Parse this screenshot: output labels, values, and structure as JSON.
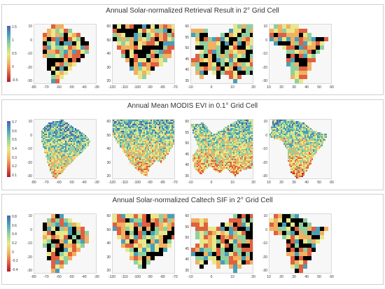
{
  "panels": [
    {
      "title": "Annual Solar-normalized Retrieval Result in 2° Grid Cell",
      "style": "coarse",
      "colorbar_ticks": [
        "1.5",
        "1",
        "0.5",
        "0",
        "-0.5"
      ],
      "maps": [
        {
          "region": "south-america",
          "yticks": [
            "10",
            "0",
            "-10",
            "-20",
            "-30"
          ],
          "xticks": [
            "-80",
            "-70",
            "-60",
            "-50",
            "-40",
            "-30"
          ]
        },
        {
          "region": "north-america",
          "yticks": [
            "60",
            "50",
            "40",
            "30",
            "20"
          ],
          "xticks": [
            "-120",
            "-110",
            "-100",
            "-90",
            "-80",
            "-70"
          ]
        },
        {
          "region": "europe",
          "yticks": [
            "60",
            "55",
            "50",
            "45",
            "40",
            "35"
          ],
          "xticks": [
            "-10",
            "0",
            "10",
            "20"
          ]
        },
        {
          "region": "africa",
          "yticks": [
            "10",
            "0",
            "-10",
            "-20",
            "-30"
          ],
          "xticks": [
            "10",
            "20",
            "30",
            "40",
            "50",
            "60"
          ]
        }
      ]
    },
    {
      "title": "Annual Mean MODIS EVI in 0.1° Grid Cell",
      "style": "fine",
      "colorbar_ticks": [
        "0.7",
        "0.6",
        "0.5",
        "0.4",
        "0.3",
        "0.2",
        "0.1"
      ],
      "maps": [
        {
          "region": "south-america",
          "yticks": [
            "10",
            "0",
            "-10",
            "-20",
            "-30"
          ],
          "xticks": [
            "-80",
            "-70",
            "-60",
            "-50",
            "-40",
            "-30"
          ]
        },
        {
          "region": "north-america",
          "yticks": [
            "60",
            "50",
            "40",
            "30",
            "20"
          ],
          "xticks": [
            "-120",
            "-110",
            "-100",
            "-90",
            "-80",
            "-70"
          ]
        },
        {
          "region": "europe",
          "yticks": [
            "60",
            "55",
            "50",
            "45",
            "40",
            "35"
          ],
          "xticks": [
            "-10",
            "0",
            "10",
            "20"
          ]
        },
        {
          "region": "africa",
          "yticks": [
            "10",
            "0",
            "-10",
            "-20",
            "-30"
          ],
          "xticks": [
            "10",
            "20",
            "30",
            "40",
            "50",
            "60"
          ]
        }
      ]
    },
    {
      "title": "Annual Solar-normalized Caltech SIF in 2° Grid Cell",
      "style": "coarse",
      "colorbar_ticks": [
        "0.8",
        "0.6",
        "0.4",
        "0.2",
        "0",
        "-0.2",
        "-0.4"
      ],
      "maps": [
        {
          "region": "south-america",
          "yticks": [
            "10",
            "0",
            "-10",
            "-20",
            "-30"
          ],
          "xticks": [
            "-80",
            "-70",
            "-60",
            "-50",
            "-40",
            "-30"
          ]
        },
        {
          "region": "north-america",
          "yticks": [
            "60",
            "50",
            "40",
            "30",
            "20"
          ],
          "xticks": [
            "-120",
            "-110",
            "-100",
            "-90",
            "-80",
            "-70"
          ]
        },
        {
          "region": "europe",
          "yticks": [
            "60",
            "55",
            "50",
            "45",
            "40",
            "35"
          ],
          "xticks": [
            "-10",
            "0",
            "10",
            "20"
          ]
        },
        {
          "region": "africa",
          "yticks": [
            "10",
            "0",
            "-10",
            "-20",
            "-30"
          ],
          "xticks": [
            "10",
            "20",
            "30",
            "40",
            "50",
            "60"
          ]
        }
      ]
    }
  ],
  "colors": {
    "palette": [
      "#b01830",
      "#e06040",
      "#f2b060",
      "#e8e88a",
      "#8fd0a0",
      "#4a9fb8",
      "#5060b0"
    ],
    "no_data": "#000000",
    "background": "#ffffff"
  }
}
